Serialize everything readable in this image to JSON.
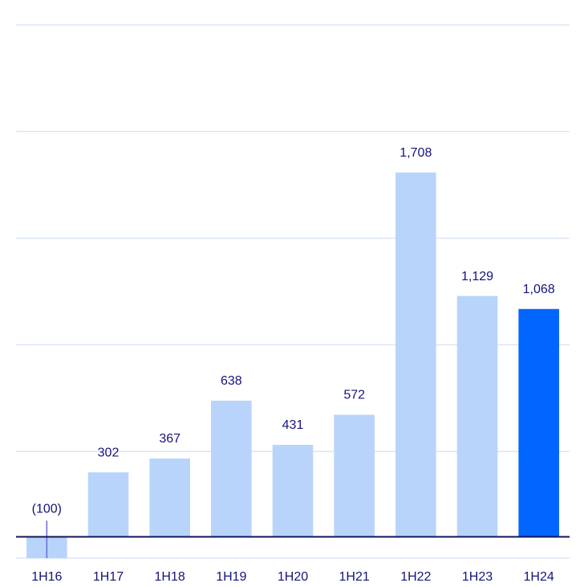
{
  "chart_data": {
    "type": "bar",
    "categories": [
      "1H16",
      "1H17",
      "1H18",
      "1H19",
      "1H20",
      "1H21",
      "1H22",
      "1H23",
      "1H24"
    ],
    "values": [
      -100,
      302,
      367,
      638,
      431,
      572,
      1708,
      1129,
      1068
    ],
    "value_labels": [
      "(100)",
      "302",
      "367",
      "638",
      "431",
      "572",
      "1,708",
      "1,129",
      "1,068"
    ],
    "colors": [
      "#b8d4fb",
      "#b8d4fb",
      "#b8d4fb",
      "#b8d4fb",
      "#b8d4fb",
      "#b8d4fb",
      "#b8d4fb",
      "#b8d4fb",
      "#0066ff"
    ],
    "ylim": [
      -100,
      2400
    ],
    "yticks": [
      -100,
      400,
      900,
      1400,
      1900,
      2400
    ],
    "grid": true
  }
}
